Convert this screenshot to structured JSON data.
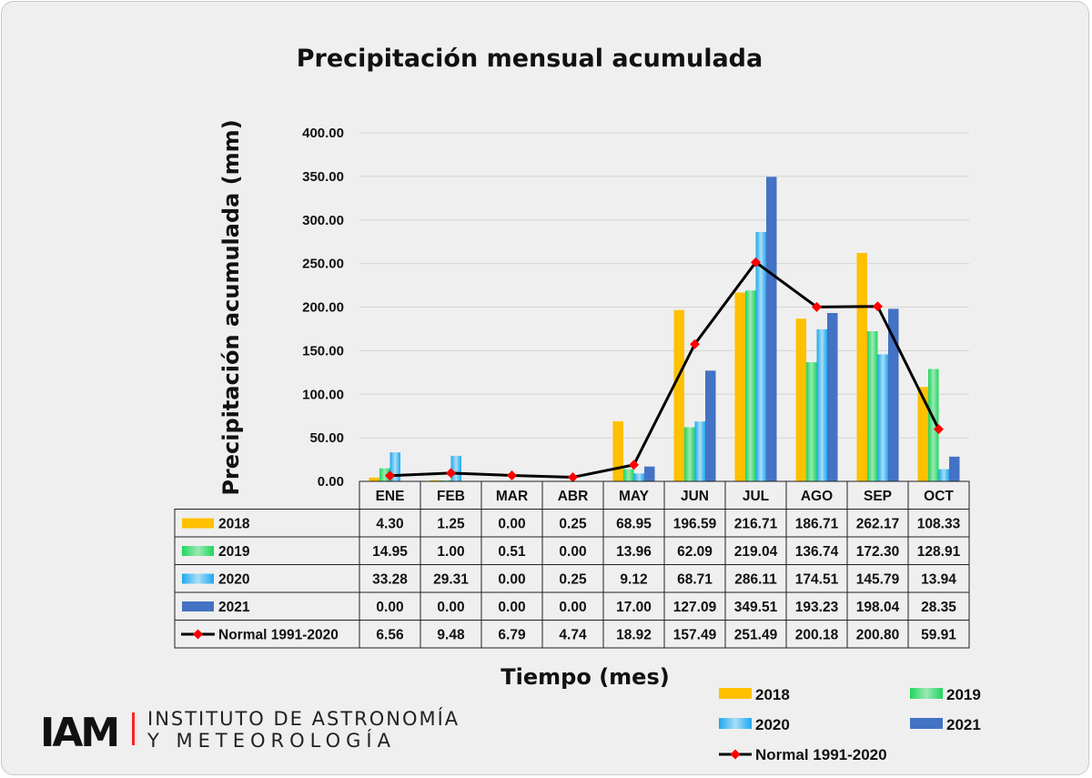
{
  "chart_data": {
    "type": "bar",
    "title": "Precipitación mensual acumulada",
    "xlabel": "Tiempo (mes)",
    "ylabel": "Precipitación acumulada (mm)",
    "ylim": [
      0,
      400
    ],
    "yticks": [
      "0.00",
      "50.00",
      "100.00",
      "150.00",
      "200.00",
      "250.00",
      "300.00",
      "350.00",
      "400.00"
    ],
    "grid": true,
    "legend_position": "bottom-right",
    "categories": [
      "ENE",
      "FEB",
      "MAR",
      "ABR",
      "MAY",
      "JUN",
      "JUL",
      "AGO",
      "SEP",
      "OCT"
    ],
    "series": [
      {
        "name": "2018",
        "type": "bar",
        "color": "#ffc000",
        "values": [
          4.3,
          1.25,
          0.0,
          0.25,
          68.95,
          196.59,
          216.71,
          186.71,
          262.17,
          108.33
        ],
        "labels": [
          "4.30",
          "1.25",
          "0.00",
          "0.25",
          "68.95",
          "196.59",
          "216.71",
          "186.71",
          "262.17",
          "108.33"
        ]
      },
      {
        "name": "2019",
        "type": "bar",
        "color": "#2ecc71",
        "values": [
          14.95,
          1.0,
          0.51,
          0.0,
          13.96,
          62.09,
          219.04,
          136.74,
          172.3,
          128.91
        ],
        "labels": [
          "14.95",
          "1.00",
          "0.51",
          "0.00",
          "13.96",
          "62.09",
          "219.04",
          "136.74",
          "172.30",
          "128.91"
        ]
      },
      {
        "name": "2020",
        "type": "bar",
        "color": "#29b6f6",
        "values": [
          33.28,
          29.31,
          0.0,
          0.25,
          9.12,
          68.71,
          286.11,
          174.51,
          145.79,
          13.94
        ],
        "labels": [
          "33.28",
          "29.31",
          "0.00",
          "0.25",
          "9.12",
          "68.71",
          "286.11",
          "174.51",
          "145.79",
          "13.94"
        ]
      },
      {
        "name": "2021",
        "type": "bar",
        "color": "#4472c4",
        "values": [
          0.0,
          0.0,
          0.0,
          0.0,
          17.0,
          127.09,
          349.51,
          193.23,
          198.04,
          28.35
        ],
        "labels": [
          "0.00",
          "0.00",
          "0.00",
          "0.00",
          "17.00",
          "127.09",
          "349.51",
          "193.23",
          "198.04",
          "28.35"
        ]
      },
      {
        "name": "Normal 1991-2020",
        "type": "line",
        "color": "#000000",
        "marker_color": "#ff0000",
        "values": [
          6.56,
          9.48,
          6.79,
          4.74,
          18.92,
          157.49,
          251.49,
          200.18,
          200.8,
          59.91
        ],
        "labels": [
          "6.56",
          "9.48",
          "6.79",
          "4.74",
          "18.92",
          "157.49",
          "251.49",
          "200.18",
          "200.80",
          "59.91"
        ]
      }
    ]
  },
  "logo": {
    "mark": "IAM",
    "line1": "INSTITUTO DE ASTRONOMÍA",
    "line2": "Y METEOROLOGÍA"
  }
}
